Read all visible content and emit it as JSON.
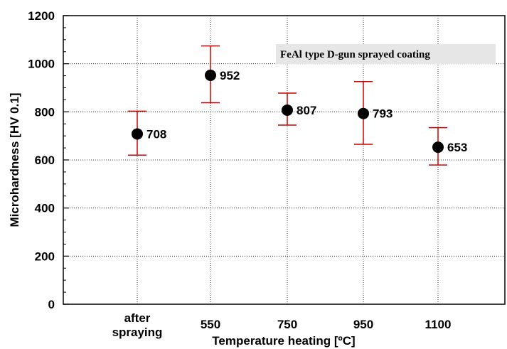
{
  "chart_data": {
    "type": "scatter",
    "categories": [
      "after\nspraying",
      "550",
      "750",
      "950",
      "1100"
    ],
    "values": [
      708,
      952,
      807,
      793,
      653
    ],
    "error_upper": [
      803,
      1074,
      878,
      926,
      734
    ],
    "error_lower": [
      620,
      838,
      745,
      665,
      579
    ],
    "data_labels": [
      "708",
      "952",
      "807",
      "793",
      "653"
    ],
    "xlabel": "Temperature heating [ºC]",
    "ylabel": "Microhardness [HV 0.1]",
    "ylim": [
      0,
      1200
    ],
    "yticks": [
      "0",
      "200",
      "400",
      "600",
      "800",
      "1000",
      "1200"
    ],
    "annotation": "FeAl type D-gun sprayed coating",
    "grid": true,
    "colors": {
      "marker": "#000000",
      "error_bar": "#cc0000",
      "annotation_bg": "#e6e6e6"
    }
  }
}
